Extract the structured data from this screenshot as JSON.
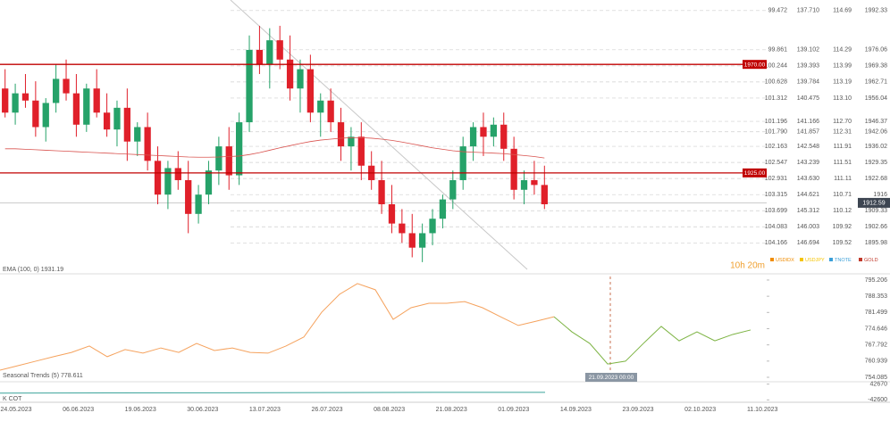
{
  "chart_data": [
    {
      "type": "candlestick",
      "ylim": [
        1885,
        1993
      ],
      "open": [
        1960,
        1950,
        1958,
        1955,
        1944,
        1954,
        1964,
        1958,
        1945,
        1960,
        1950,
        1943,
        1952,
        1938,
        1944,
        1930,
        1916,
        1927,
        1922,
        1908,
        1916,
        1926,
        1936,
        1924,
        1946,
        1976,
        1970,
        1980,
        1972,
        1960,
        1968,
        1950,
        1955,
        1946,
        1936,
        1940,
        1928,
        1922,
        1912,
        1904,
        1900,
        1894,
        1900,
        1906,
        1914,
        1922,
        1936,
        1944,
        1940,
        1945,
        1935,
        1918,
        1922,
        1920
      ],
      "high": [
        1968,
        1962,
        1966,
        1963,
        1956,
        1970,
        1972,
        1966,
        1962,
        1968,
        1958,
        1955,
        1960,
        1946,
        1950,
        1936,
        1930,
        1934,
        1930,
        1920,
        1930,
        1940,
        1944,
        1950,
        1982,
        1986,
        1985,
        1986,
        1982,
        1972,
        1974,
        1958,
        1960,
        1952,
        1944,
        1946,
        1934,
        1930,
        1920,
        1910,
        1908,
        1904,
        1910,
        1916,
        1926,
        1940,
        1946,
        1950,
        1948,
        1950,
        1940,
        1926,
        1930,
        1928
      ],
      "low": [
        1948,
        1945,
        1952,
        1940,
        1938,
        1950,
        1955,
        1940,
        1942,
        1948,
        1940,
        1936,
        1930,
        1932,
        1926,
        1912,
        1910,
        1918,
        1900,
        1904,
        1912,
        1920,
        1918,
        1920,
        1942,
        1966,
        1960,
        1968,
        1955,
        1950,
        1946,
        1940,
        1942,
        1930,
        1926,
        1922,
        1918,
        1908,
        1900,
        1896,
        1890,
        1888,
        1895,
        1902,
        1910,
        1918,
        1930,
        1932,
        1936,
        1930,
        1914,
        1912,
        1916,
        1910
      ],
      "close": [
        1950,
        1958,
        1955,
        1944,
        1954,
        1964,
        1958,
        1945,
        1960,
        1950,
        1943,
        1952,
        1938,
        1944,
        1930,
        1916,
        1927,
        1922,
        1908,
        1916,
        1926,
        1936,
        1924,
        1946,
        1976,
        1970,
        1980,
        1972,
        1960,
        1968,
        1950,
        1955,
        1946,
        1936,
        1940,
        1928,
        1922,
        1912,
        1904,
        1900,
        1894,
        1900,
        1906,
        1914,
        1922,
        1936,
        1944,
        1940,
        1945,
        1935,
        1918,
        1922,
        1920,
        1912
      ],
      "up_color": "#26a269",
      "down_color": "#e0202a",
      "ema": {
        "label": "EMA (100, 0) 1931.19",
        "color": "#d9534f",
        "values": [
          1935,
          1935,
          1934.8,
          1934.6,
          1934.4,
          1934.2,
          1934,
          1933.8,
          1933.6,
          1933.4,
          1933.2,
          1933,
          1932.8,
          1932.6,
          1932.4,
          1932.2,
          1932,
          1931.8,
          1931.6,
          1931.5,
          1931.5,
          1931.6,
          1931.8,
          1932,
          1932.6,
          1933.4,
          1934.4,
          1935.4,
          1936.3,
          1937.2,
          1938,
          1938.6,
          1939,
          1939.4,
          1939.6,
          1939.6,
          1939.4,
          1939,
          1938.5,
          1937.8,
          1937,
          1936.2,
          1935.4,
          1934.8,
          1934.2,
          1933.8,
          1933.6,
          1933.4,
          1933.2,
          1933,
          1932.6,
          1932.2,
          1931.8,
          1931.2
        ]
      },
      "levels": [
        {
          "value": 1970,
          "label": "1970.00",
          "color": "#c00000"
        },
        {
          "value": 1925,
          "label": "1925.00",
          "color": "#c00000"
        }
      ],
      "last": {
        "value": 1912.59,
        "label": "1912.59"
      },
      "countdown": "10h 20m",
      "yticks": [
        1992.33,
        1976.06,
        1969.38,
        1962.71,
        1956.04,
        1946.37,
        1942.06,
        1936.02,
        1929.35,
        1922.68,
        1916,
        1909.33,
        1902.66,
        1895.98
      ],
      "axis_columns": [
        {
          "name": "USDIDX",
          "color": "#f08c00",
          "labels": [
            "99.472",
            "99.861",
            "100.244",
            "100.628",
            "101.312",
            "101.196",
            "101.790",
            "102.163",
            "102.547",
            "102.931",
            "103.315",
            "103.699",
            "104.083",
            "104.166"
          ]
        },
        {
          "name": "USDJPY",
          "color": "#f5c400",
          "labels": [
            "137.710",
            "139.102",
            "139.393",
            "139.784",
            "140.475",
            "141.166",
            "141.857",
            "142.548",
            "143.239",
            "143.630",
            "144.621",
            "145.312",
            "146.003",
            "146.694"
          ]
        },
        {
          "name": "TNOTE",
          "color": "#3a9fd8",
          "labels": [
            "114.69",
            "114.29",
            "113.99",
            "113.19",
            "113.10",
            "112.70",
            "112.31",
            "111.91",
            "111.51",
            "111.11",
            "110.71",
            "110.12",
            "109.92",
            "109.52"
          ]
        },
        {
          "name": "GOLD",
          "color": "#c0392b"
        }
      ]
    },
    {
      "type": "line",
      "label": "Seasonal Trends (5) 778.611",
      "ylim": [
        752.2,
        796.7
      ],
      "yticks": [
        795.206,
        788.353,
        781.499,
        774.646,
        767.792,
        760.939,
        754.085
      ],
      "annotation": "21.09.2023 00:00",
      "series": [
        {
          "color": "#f5a25d",
          "values": [
            757.1,
            759.0,
            760.9,
            762.8,
            764.6,
            767.3,
            762.8,
            765.8,
            764.3,
            766.5,
            764.6,
            768.4,
            765.4,
            766.5,
            764.6,
            764.3,
            767.3,
            771.1,
            781.6,
            789.2,
            793.7,
            791.1,
            778.6,
            783.5,
            785.4,
            785.4,
            786.1,
            783.5,
            779.7,
            776.0,
            777.8,
            779.7,
            null,
            null,
            null,
            null,
            null,
            null,
            null,
            null,
            null,
            null,
            null
          ]
        },
        {
          "color": "#7cb342",
          "values": [
            null,
            null,
            null,
            null,
            null,
            null,
            null,
            null,
            null,
            null,
            null,
            null,
            null,
            null,
            null,
            null,
            null,
            null,
            null,
            null,
            null,
            null,
            null,
            null,
            null,
            null,
            null,
            null,
            null,
            null,
            null,
            779.7,
            773.3,
            768.4,
            759.7,
            760.9,
            768.4,
            775.6,
            769.5,
            773.3,
            769.5,
            772.2,
            774.1
          ]
        }
      ]
    },
    {
      "type": "line",
      "label": "K COT",
      "ylim": [
        -55390,
        55460
      ],
      "yticks": [
        42670,
        -42600
      ],
      "series": [
        {
          "color": "#3aa39a",
          "values": [
            -6000,
            -5000,
            -4000,
            -3000,
            -2000,
            -1500
          ]
        }
      ]
    }
  ],
  "x_axis": {
    "categories": [
      "24.05.2023",
      "06.06.2023",
      "19.06.2023",
      "30.06.2023",
      "13.07.2023",
      "26.07.2023",
      "08.08.2023",
      "21.08.2023",
      "01.09.2023",
      "14.09.2023",
      "23.09.2023",
      "02.10.2023",
      "11.10.2023"
    ]
  }
}
